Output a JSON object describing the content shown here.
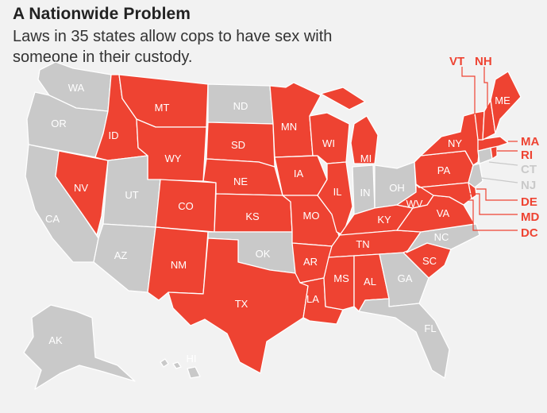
{
  "title": "A Nationwide Problem",
  "subtitle": "Laws in 35 states allow cops to have sex with someone in their custody.",
  "colors": {
    "allowed": "#ee4332",
    "not_allowed": "#c9c9c9",
    "background": "#f2f2f2"
  },
  "states": {
    "WA": {
      "label": "WA",
      "allowed": false
    },
    "OR": {
      "label": "OR",
      "allowed": false
    },
    "CA": {
      "label": "CA",
      "allowed": false
    },
    "NV": {
      "label": "NV",
      "allowed": true
    },
    "ID": {
      "label": "ID",
      "allowed": true
    },
    "MT": {
      "label": "MT",
      "allowed": true
    },
    "WY": {
      "label": "WY",
      "allowed": true
    },
    "UT": {
      "label": "UT",
      "allowed": false
    },
    "AZ": {
      "label": "AZ",
      "allowed": false
    },
    "CO": {
      "label": "CO",
      "allowed": true
    },
    "NM": {
      "label": "NM",
      "allowed": true
    },
    "ND": {
      "label": "ND",
      "allowed": false
    },
    "SD": {
      "label": "SD",
      "allowed": true
    },
    "NE": {
      "label": "NE",
      "allowed": true
    },
    "KS": {
      "label": "KS",
      "allowed": true
    },
    "OK": {
      "label": "OK",
      "allowed": false
    },
    "TX": {
      "label": "TX",
      "allowed": true
    },
    "MN": {
      "label": "MN",
      "allowed": true
    },
    "IA": {
      "label": "IA",
      "allowed": true
    },
    "MO": {
      "label": "MO",
      "allowed": true
    },
    "AR": {
      "label": "AR",
      "allowed": true
    },
    "LA": {
      "label": "LA",
      "allowed": true
    },
    "WI": {
      "label": "WI",
      "allowed": true
    },
    "IL": {
      "label": "IL",
      "allowed": true
    },
    "MI": {
      "label": "MI",
      "allowed": true
    },
    "IN": {
      "label": "IN",
      "allowed": false
    },
    "OH": {
      "label": "OH",
      "allowed": false
    },
    "KY": {
      "label": "KY",
      "allowed": true
    },
    "TN": {
      "label": "TN",
      "allowed": true
    },
    "MS": {
      "label": "MS",
      "allowed": true
    },
    "AL": {
      "label": "AL",
      "allowed": true
    },
    "GA": {
      "label": "GA",
      "allowed": false
    },
    "FL": {
      "label": "FL",
      "allowed": false
    },
    "SC": {
      "label": "SC",
      "allowed": true
    },
    "NC": {
      "label": "NC",
      "allowed": false
    },
    "VA": {
      "label": "VA",
      "allowed": true
    },
    "WV": {
      "label": "WV",
      "allowed": true
    },
    "PA": {
      "label": "PA",
      "allowed": true
    },
    "NY": {
      "label": "NY",
      "allowed": true
    },
    "ME": {
      "label": "ME",
      "allowed": true
    },
    "AK": {
      "label": "AK",
      "allowed": false
    },
    "HI": {
      "label": "HI",
      "allowed": false
    },
    "VT": {
      "label": "VT",
      "allowed": true
    },
    "NH": {
      "label": "NH",
      "allowed": true
    },
    "MA": {
      "label": "MA",
      "allowed": true
    },
    "RI": {
      "label": "RI",
      "allowed": true
    },
    "CT": {
      "label": "CT",
      "allowed": false
    },
    "NJ": {
      "label": "NJ",
      "allowed": false
    },
    "DE": {
      "label": "DE",
      "allowed": true
    },
    "MD": {
      "label": "MD",
      "allowed": true
    },
    "DC": {
      "label": "DC",
      "allowed": true
    }
  }
}
